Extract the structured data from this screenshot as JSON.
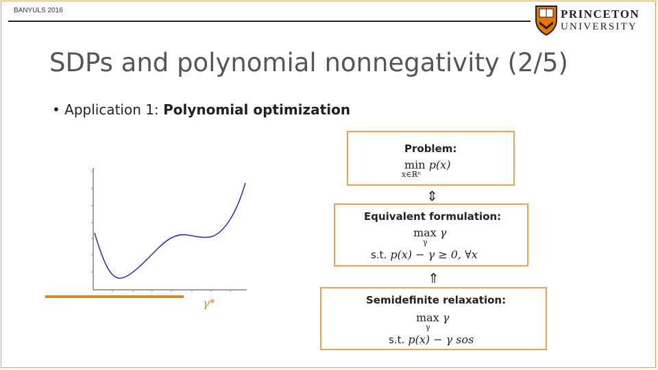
{
  "header": {
    "conference": "BANYULS 2016",
    "logo_line1": "PRINCETON",
    "logo_line2": "UNIVERSITY"
  },
  "title": "SDPs and polynomial nonnegativity (2/5)",
  "bullet": {
    "marker": "•",
    "prefix": "Application 1: ",
    "emphasis": "Polynomial optimization"
  },
  "boxes": {
    "problem": {
      "title": "Problem:",
      "op": "min",
      "objective": "p(x)",
      "subscript": "x∈ℝⁿ"
    },
    "equivalent": {
      "title": "Equivalent formulation:",
      "op": "max",
      "var": "γ",
      "subscript": "γ",
      "st": "s.t.",
      "constraint": "p(x) − γ ≥ 0, ∀x"
    },
    "relaxation": {
      "title": "Semidefinite relaxation:",
      "op": "max",
      "var": "γ",
      "subscript": "γ",
      "st": "s.t.",
      "constraint": "p(x) − γ sos"
    }
  },
  "arrows": {
    "between_1_2": "⇕",
    "between_2_3": "⇑"
  },
  "plot": {
    "gamma_label": "γ*",
    "accent_color": "#d28a2c",
    "curve_color": "#2b2bb0"
  }
}
